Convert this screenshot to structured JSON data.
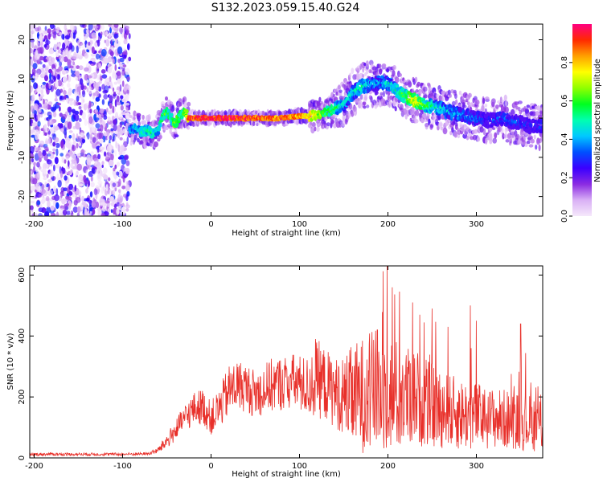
{
  "title": "S132.2023.059.15.40.G24",
  "chart_data": [
    {
      "type": "heatmap",
      "xlabel": "Height of straight line (km)",
      "ylabel": "Frequency (Hz)",
      "xlim": [
        -205,
        375
      ],
      "ylim": [
        -25,
        24
      ],
      "xticks": [
        -200,
        -100,
        0,
        100,
        200,
        300
      ],
      "yticks": [
        -20,
        -10,
        0,
        10,
        20
      ],
      "colorbar": {
        "label": "Normalized spectral amplitude",
        "range": [
          0,
          1
        ],
        "ticks": [
          "0.0",
          "0.2",
          "0.4",
          "0.6",
          "0.8"
        ],
        "colors": [
          "#f5e8fb",
          "#d9b0f5",
          "#8a2be2",
          "#3a00ff",
          "#0050ff",
          "#00c8ff",
          "#00ffb0",
          "#00ff20",
          "#90ff00",
          "#ffff00",
          "#ffa000",
          "#ff2a00",
          "#ff0080"
        ]
      },
      "noise_region_x": [
        -205,
        -92
      ],
      "ridge": {
        "x": [
          -92,
          -85,
          -78,
          -72,
          -66,
          -60,
          -55,
          -50,
          -45,
          -40,
          -35,
          -30,
          -25,
          -20,
          0,
          20,
          40,
          60,
          80,
          100,
          110,
          120,
          130,
          140,
          150,
          160,
          170,
          180,
          190,
          200,
          210,
          220,
          230,
          240,
          250,
          260,
          270,
          280,
          290,
          300,
          310,
          320,
          330,
          340,
          350,
          360,
          375
        ],
        "frequency": [
          -3,
          -2.5,
          -3.5,
          -3,
          -4,
          -3,
          0,
          1.5,
          0,
          -1.5,
          1,
          1.5,
          0,
          0,
          0,
          0,
          0,
          0,
          0,
          0.5,
          0.5,
          1,
          1.5,
          2.5,
          3.5,
          6.5,
          8,
          8.5,
          9,
          9,
          7,
          5.5,
          4.5,
          3.5,
          3,
          2.5,
          1.5,
          1,
          0.5,
          0,
          -0.5,
          -0.5,
          0,
          -1,
          -1,
          -2,
          -2
        ],
        "amplitude": [
          0.4,
          0.45,
          0.45,
          0.5,
          0.5,
          0.45,
          0.55,
          0.6,
          0.55,
          0.7,
          0.55,
          0.6,
          0.9,
          0.92,
          0.95,
          0.95,
          0.92,
          0.9,
          0.88,
          0.85,
          0.82,
          0.7,
          0.6,
          0.55,
          0.45,
          0.45,
          0.5,
          0.4,
          0.4,
          0.45,
          0.5,
          0.6,
          0.75,
          0.6,
          0.5,
          0.45,
          0.4,
          0.4,
          0.35,
          0.35,
          0.3,
          0.3,
          0.35,
          0.3,
          0.3,
          0.3,
          0.3
        ]
      }
    },
    {
      "type": "line",
      "xlabel": "Height of straight line (km)",
      "ylabel": "SNR (10 * v/v)",
      "xlim": [
        -205,
        375
      ],
      "ylim": [
        0,
        630
      ],
      "xticks": [
        -200,
        -100,
        0,
        100,
        200,
        300
      ],
      "yticks": [
        0,
        200,
        400,
        600
      ],
      "series": [
        {
          "color": "#e8302a",
          "x": [
            -205,
            -100,
            -70,
            -60,
            -50,
            -40,
            -30,
            -20,
            -10,
            0,
            10,
            20,
            30,
            40,
            50,
            60,
            70,
            80,
            90,
            100,
            110,
            120,
            130,
            140,
            150,
            160,
            170,
            180,
            190,
            200,
            210,
            220,
            230,
            240,
            250,
            260,
            270,
            280,
            290,
            300,
            310,
            320,
            330,
            340,
            350,
            360,
            375
          ],
          "y": [
            12,
            12,
            14,
            25,
            55,
            90,
            130,
            160,
            170,
            130,
            165,
            220,
            240,
            230,
            210,
            225,
            240,
            245,
            250,
            245,
            230,
            260,
            240,
            215,
            205,
            200,
            205,
            215,
            220,
            220,
            200,
            200,
            205,
            185,
            170,
            160,
            150,
            145,
            140,
            140,
            130,
            130,
            128,
            125,
            120,
            115,
            115
          ],
          "spread": [
            5,
            5,
            5,
            10,
            25,
            35,
            45,
            55,
            60,
            55,
            70,
            85,
            85,
            80,
            80,
            85,
            90,
            90,
            95,
            95,
            100,
            130,
            120,
            115,
            130,
            170,
            190,
            200,
            210,
            200,
            190,
            170,
            160,
            150,
            140,
            130,
            125,
            120,
            115,
            110,
            105,
            100,
            100,
            95,
            95,
            95,
            95
          ],
          "peaks": [
            [
              118,
              390
            ],
            [
              188,
              420
            ],
            [
              199,
              630
            ],
            [
              205,
              560
            ],
            [
              228,
              510
            ],
            [
              236,
              470
            ],
            [
              250,
              490
            ],
            [
              268,
              430
            ],
            [
              293,
              500
            ],
            [
              300,
              450
            ],
            [
              350,
              440
            ]
          ]
        }
      ]
    }
  ]
}
